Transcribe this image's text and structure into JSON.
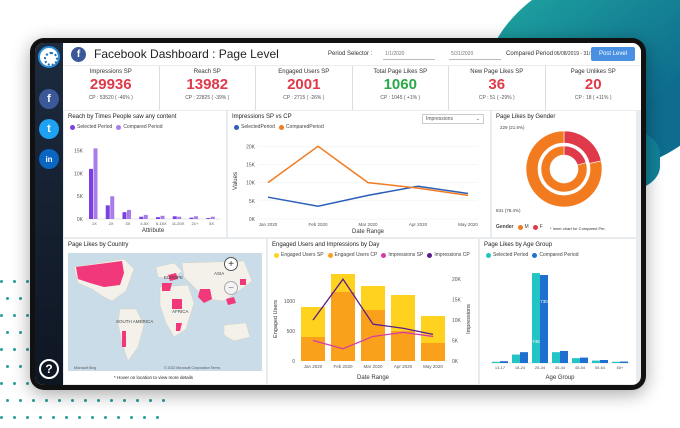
{
  "header": {
    "title": "Facebook Dashboard : Page Level",
    "period_selector_label": "Period Selector :",
    "period_start": "1/1/2020",
    "period_end": "5/31/2020",
    "compared_label": "Compared Period",
    "compared_range": "06/08/2019 - 31/12/2019",
    "post_button": "Post Level"
  },
  "sidebar": {
    "facebook": "f",
    "twitter": "t",
    "linkedin": "in",
    "help": "?"
  },
  "kpis": [
    {
      "label": "Impressions SP",
      "value": "29936",
      "sub": "CP : 53520 ( -46% )",
      "color": "#e0394a"
    },
    {
      "label": "Reach SP",
      "value": "13982",
      "sub": "CP : 22825 ( -39% )",
      "color": "#e0394a"
    },
    {
      "label": "Engaged Users SP",
      "value": "2001",
      "sub": "CP : 2715 ( -26% )",
      "color": "#e0394a"
    },
    {
      "label": "Total Page Likes SP",
      "value": "1060",
      "sub": "CP : 1045 ( +1% )",
      "color": "#2aa84a"
    },
    {
      "label": "New Page Likes SP",
      "value": "36",
      "sub": "CP : 51 ( -29% )",
      "color": "#e0394a"
    },
    {
      "label": "Page Unlikes SP",
      "value": "20",
      "sub": "CP : 18 ( +11% )",
      "color": "#e0394a"
    }
  ],
  "reach_card": {
    "title": "Reach by Times People saw any content",
    "legend": [
      "Selected Period",
      "Compared Period"
    ],
    "xlabel": "Attribute",
    "yticks": [
      "0K",
      "5K",
      "10K",
      "15K"
    ]
  },
  "impressions_card": {
    "title": "Impressions SP vs CP",
    "legend": [
      "SelectedPeriod",
      "ComparedPeriod"
    ],
    "dropdown": "Impressions",
    "xlabel": "Date Range",
    "ylabel": "Values",
    "yticks": [
      "0K",
      "5K",
      "10K",
      "15K",
      "20K"
    ],
    "xticks": [
      "Jan 2020",
      "Feb 2020",
      "Mar 2020",
      "Apr 2020",
      "May 2020"
    ]
  },
  "gender_card": {
    "title": "Page Likes by Gender",
    "label_top": "229 (21.6%)",
    "label_bottom": "831 (78.4%)",
    "legend_title": "Gender",
    "legend": [
      "M",
      "F"
    ],
    "note": "* Inner chart for Compared Per."
  },
  "country_card": {
    "title": "Page Likes by Country",
    "labels": [
      "EUROPE",
      "AFRICA",
      "SOUTH AMERICA",
      "ASIA"
    ],
    "copyright": "© 2022 Microsoft Corporation  Terms",
    "bing": "Microsoft Bing",
    "note": "* Hover on location to view more details",
    "zoom_in": "+",
    "zoom_out": "−"
  },
  "engaged_card": {
    "title": "Engaged Users and Impressions by Day",
    "legend": [
      "Engaged Users SP",
      "Engaged Users CP",
      "Impressions SP",
      "Impressions CP"
    ],
    "xlabel": "Date Range",
    "ylabel_left": "Engaged Users",
    "ylabel_right": "Impressions",
    "yticks_left": [
      "0",
      "500",
      "1000"
    ],
    "yticks_right": [
      "0K",
      "5K",
      "10K",
      "15K",
      "20K"
    ]
  },
  "age_card": {
    "title": "Page Likes by Age Group",
    "legend": [
      "Selected Period",
      "Compared Period"
    ],
    "xlabel": "Age Group"
  },
  "colors": {
    "selected_purple": "#7b3fe4",
    "compared_purple": "#a77de8",
    "selected_blue": "#2b5fb8",
    "compared_orange": "#f27b1f",
    "yellow_sp": "#ffd21f",
    "orange_cp": "#f9a11b",
    "magenta": "#d63aa8",
    "purple_line": "#5a1e8c",
    "teal": "#22c4c4",
    "blue": "#1f6fd1"
  },
  "chart_data": [
    {
      "type": "bar",
      "title": "Reach by Times People saw any content",
      "xlabel": "Attribute",
      "ylim": [
        0,
        18000
      ],
      "categories": [
        "1X",
        "2X",
        "3X",
        "4-5X",
        "6-10X",
        "11-20X",
        "21+",
        "5X"
      ],
      "series": [
        {
          "name": "Selected Period",
          "values": [
            11000,
            3000,
            1500,
            500,
            400,
            600,
            300,
            200
          ]
        },
        {
          "name": "Compared Period",
          "values": [
            15500,
            5000,
            2000,
            900,
            700,
            500,
            600,
            500
          ]
        }
      ]
    },
    {
      "type": "line",
      "title": "Impressions SP vs CP",
      "xlabel": "Date Range",
      "ylabel": "Values",
      "ylim": [
        0,
        22000
      ],
      "categories": [
        "Jan 2020",
        "Feb 2020",
        "Mar 2020",
        "Apr 2020",
        "May 2020"
      ],
      "series": [
        {
          "name": "SelectedPeriod",
          "values": [
            6000,
            3500,
            6500,
            9000,
            7000
          ]
        },
        {
          "name": "ComparedPeriod",
          "values": [
            10000,
            20000,
            10000,
            8500,
            6500
          ]
        }
      ]
    },
    {
      "type": "pie",
      "title": "Page Likes by Gender",
      "categories": [
        "M",
        "F"
      ],
      "values": [
        831,
        229
      ]
    },
    {
      "type": "bar",
      "title": "Engaged Users and Impressions by Day",
      "xlabel": "Date Range",
      "categories": [
        "Jan 2020",
        "Feb 2020",
        "Mar 2020",
        "Apr 2020",
        "May 2020"
      ],
      "series": [
        {
          "name": "Engaged Users SP",
          "values": [
            400,
            1150,
            850,
            500,
            300
          ]
        },
        {
          "name": "Engaged Users CP",
          "values": [
            900,
            1450,
            1250,
            1100,
            750
          ]
        },
        {
          "name": "Impressions SP",
          "values": [
            5000,
            3000,
            6000,
            7000,
            6000
          ]
        },
        {
          "name": "Impressions CP",
          "values": [
            10000,
            20000,
            9000,
            8000,
            6500
          ]
        }
      ]
    },
    {
      "type": "bar",
      "title": "Page Likes by Age Group",
      "xlabel": "Age Group",
      "categories": [
        "13-17",
        "18-24",
        "25-34",
        "35-44",
        "45-54",
        "55-64",
        "65+"
      ],
      "series": [
        {
          "name": "Selected Period",
          "values": [
            10,
            70,
            746,
            90,
            40,
            20,
            10
          ]
        },
        {
          "name": "Compared Period",
          "values": [
            15,
            90,
            730,
            100,
            45,
            25,
            12
          ]
        }
      ]
    }
  ]
}
